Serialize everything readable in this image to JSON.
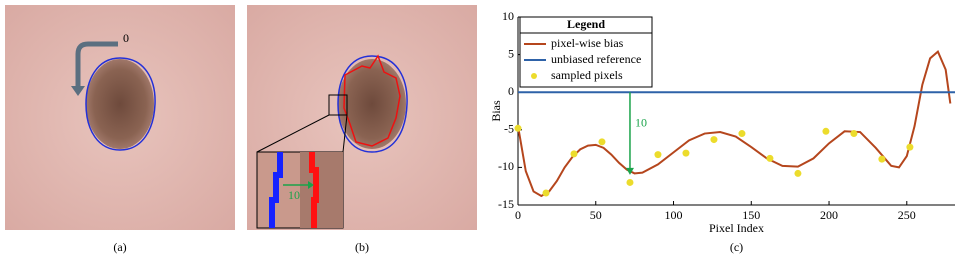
{
  "panels": [
    {
      "caption": "(a)",
      "annotation": "0"
    },
    {
      "caption": "(b)",
      "annotation": "10"
    }
  ],
  "chart_data": {
    "type": "line",
    "caption": "(c)",
    "xlabel": "Pixel Index",
    "ylabel": "Bias",
    "legend_title": "Legend",
    "legend": "upper left",
    "xlim": [
      0,
      281
    ],
    "ylim": [
      -15,
      10
    ],
    "xticks": [
      0,
      50,
      100,
      150,
      200,
      250
    ],
    "yticks": [
      -15,
      -10,
      -5,
      0,
      5,
      10
    ],
    "series": [
      {
        "name": "pixel-wise bias",
        "color": "#b5461d",
        "kind": "line",
        "x": [
          0,
          5,
          10,
          15,
          20,
          25,
          30,
          35,
          40,
          45,
          50,
          55,
          60,
          65,
          70,
          75,
          80,
          90,
          100,
          110,
          120,
          130,
          140,
          150,
          160,
          170,
          180,
          190,
          200,
          210,
          220,
          230,
          240,
          245,
          250,
          255,
          260,
          265,
          270,
          275,
          278
        ],
        "values": [
          -4.5,
          -10.5,
          -13.2,
          -13.8,
          -13.2,
          -11.8,
          -10,
          -8.6,
          -7.6,
          -7.1,
          -7.0,
          -7.4,
          -8.3,
          -9.4,
          -10.3,
          -10.8,
          -10.7,
          -9.6,
          -8.0,
          -6.4,
          -5.5,
          -5.3,
          -5.9,
          -7.3,
          -8.8,
          -9.8,
          -9.9,
          -8.8,
          -6.8,
          -5.2,
          -5.3,
          -7.4,
          -9.8,
          -10.0,
          -8.5,
          -4.5,
          1.0,
          4.5,
          5.4,
          3.0,
          -1.5
        ]
      },
      {
        "name": "unbiased reference",
        "color": "#2e62a8",
        "kind": "line",
        "x": [
          0,
          281
        ],
        "values": [
          0,
          0
        ]
      },
      {
        "name": "sampled pixels",
        "color": "#ecdc2c",
        "kind": "points",
        "x": [
          0,
          18,
          36,
          54,
          72,
          90,
          108,
          126,
          144,
          162,
          180,
          198,
          216,
          234,
          252
        ],
        "values": [
          -4.8,
          -13.4,
          -8.2,
          -6.6,
          -12.0,
          -8.3,
          -8.1,
          -6.3,
          -5.5,
          -8.8,
          -10.8,
          -5.2,
          -5.5,
          -8.9,
          -7.3
        ]
      }
    ],
    "annotation": {
      "text": "10",
      "color": "#1aa34a",
      "x": 72,
      "y1": 0,
      "y2": -11
    }
  }
}
